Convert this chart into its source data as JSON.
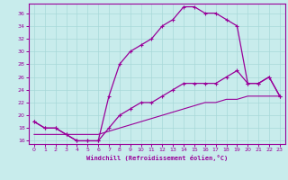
{
  "xlabel": "Windchill (Refroidissement éolien,°C)",
  "bg_color": "#c8ecec",
  "line_color": "#990099",
  "xlim": [
    -0.5,
    23.5
  ],
  "ylim": [
    15.5,
    37.5
  ],
  "yticks": [
    16,
    18,
    20,
    22,
    24,
    26,
    28,
    30,
    32,
    34,
    36
  ],
  "xticks": [
    0,
    1,
    2,
    3,
    4,
    5,
    6,
    7,
    8,
    9,
    10,
    11,
    12,
    13,
    14,
    15,
    16,
    17,
    18,
    19,
    20,
    21,
    22,
    23
  ],
  "curve_upper_x": [
    0,
    1,
    2,
    3,
    4,
    5,
    6,
    7,
    8,
    9,
    10,
    11,
    12,
    13,
    14,
    15,
    16,
    17,
    18,
    19,
    20,
    21,
    22,
    23
  ],
  "curve_upper_y": [
    19,
    18,
    18,
    17,
    16,
    16,
    16,
    23,
    28,
    30,
    31,
    32,
    34,
    35,
    37,
    37,
    36,
    36,
    35,
    34,
    25,
    25,
    26,
    23
  ],
  "curve_lower_x": [
    0,
    1,
    2,
    3,
    4,
    5,
    6,
    7,
    8,
    9,
    10,
    11,
    12,
    13,
    14,
    15,
    16,
    17,
    18,
    19,
    20,
    21,
    22,
    23
  ],
  "curve_lower_y": [
    19,
    18,
    18,
    17,
    16,
    16,
    16,
    18,
    20,
    21,
    22,
    22,
    23,
    24,
    25,
    25,
    25,
    25,
    26,
    27,
    25,
    25,
    26,
    23
  ],
  "curve_diag_x": [
    0,
    1,
    2,
    3,
    4,
    5,
    6,
    7,
    8,
    9,
    10,
    11,
    12,
    13,
    14,
    15,
    16,
    17,
    18,
    19,
    20,
    21,
    22,
    23
  ],
  "curve_diag_y": [
    17,
    17,
    17,
    17,
    17,
    17,
    17,
    17.5,
    18,
    18.5,
    19,
    19.5,
    20,
    20.5,
    21,
    21.5,
    22,
    22,
    22.5,
    22.5,
    23,
    23,
    23,
    23
  ]
}
